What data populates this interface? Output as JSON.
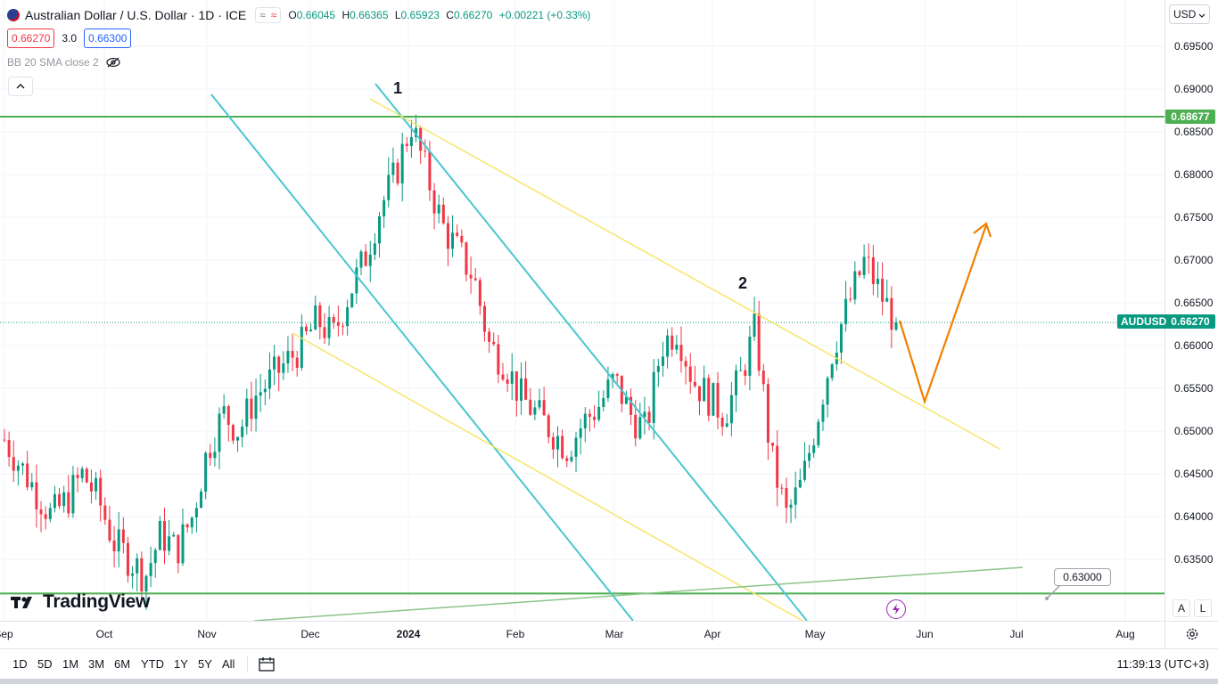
{
  "header": {
    "title": "Australian Dollar / U.S. Dollar · 1D · ICE",
    "pill_left": "≈",
    "pill_right": "≈",
    "ohlc": {
      "open_label": "O",
      "open": "0.66045",
      "high_label": "H",
      "high": "0.66365",
      "low_label": "L",
      "low": "0.65923",
      "close_label": "C",
      "close": "0.66270",
      "change": "+0.00221 (+0.33%)"
    },
    "sell_price": "0.66270",
    "spread": "3.0",
    "buy_price": "0.66300",
    "indicator": "BB 20 SMA close 2"
  },
  "price_axis": {
    "currency": "USD",
    "ticks": [
      "0.69500",
      "0.69000",
      "0.68500",
      "0.68000",
      "0.67500",
      "0.67000",
      "0.66500",
      "0.66000",
      "0.65500",
      "0.65000",
      "0.64500",
      "0.64000",
      "0.63500"
    ],
    "level_tag": "0.68677",
    "symbol_tag": "AUDUSD",
    "last_price_tag": "0.66270"
  },
  "time_axis": {
    "labels": [
      {
        "text": "Sep",
        "bold": false
      },
      {
        "text": "Oct",
        "bold": false
      },
      {
        "text": "Nov",
        "bold": false
      },
      {
        "text": "Dec",
        "bold": false
      },
      {
        "text": "2024",
        "bold": true
      },
      {
        "text": "Feb",
        "bold": false
      },
      {
        "text": "Mar",
        "bold": false
      },
      {
        "text": "Apr",
        "bold": false
      },
      {
        "text": "May",
        "bold": false
      },
      {
        "text": "Jun",
        "bold": false
      },
      {
        "text": "Jul",
        "bold": false
      },
      {
        "text": "Aug",
        "bold": false
      }
    ]
  },
  "annotations": {
    "wave1": "1",
    "wave2": "2",
    "callout": "0.63000"
  },
  "watermark": "TradingView",
  "scale_buttons": {
    "auto": "A",
    "log": "L"
  },
  "bottom_toolbar": {
    "timeframes": [
      "1D",
      "5D",
      "1M",
      "3M",
      "6M",
      "YTD",
      "1Y",
      "5Y",
      "All"
    ],
    "clock": "11:39:13 (UTC+3)"
  },
  "colors": {
    "up": "#089981",
    "down": "#f23645",
    "level_line": "#4caf50",
    "channel_cyan": "#4ac6d0",
    "channel_yellow": "#f5e66b",
    "projection": "#f08000",
    "trendline_green": "#8bc48a"
  },
  "icons": [
    "flag-icon",
    "compare-icon",
    "chevron-up-icon",
    "eye-off-icon",
    "chevron-down-icon",
    "calendar-icon",
    "gear-icon",
    "lightning-icon",
    "tradingview-logo"
  ],
  "chart_data": {
    "type": "candlestick",
    "symbol": "AUDUSD",
    "ylim": [
      0.6305,
      0.698
    ],
    "x_range": [
      "Sep",
      "Aug"
    ],
    "last_close": 0.6627,
    "horizontal_levels": [
      0.68677,
      0.631
    ],
    "swing_points": {
      "wave1_high": 0.6865,
      "wave2_high": 0.6645,
      "may_high": 0.6715,
      "april_low": 0.6365
    },
    "projection": [
      0.6627,
      0.653,
      0.674
    ],
    "series": [
      {
        "name": "Sep",
        "values": [
          0.649,
          0.646,
          0.643,
          0.64,
          0.642,
          0.645
        ]
      },
      {
        "name": "Oct",
        "values": [
          0.642,
          0.637,
          0.635,
          0.633,
          0.638,
          0.636
        ]
      },
      {
        "name": "Nov",
        "values": [
          0.64,
          0.648,
          0.652,
          0.65,
          0.654,
          0.656,
          0.658
        ]
      },
      {
        "name": "Dec",
        "values": [
          0.66,
          0.663,
          0.661,
          0.666,
          0.67,
          0.676,
          0.68,
          0.686
        ]
      },
      {
        "name": "Jan",
        "values": [
          0.68,
          0.674,
          0.671,
          0.668,
          0.66,
          0.658
        ]
      },
      {
        "name": "Feb",
        "values": [
          0.654,
          0.652,
          0.65,
          0.648,
          0.651,
          0.653
        ]
      },
      {
        "name": "Mar",
        "values": [
          0.656,
          0.652,
          0.65,
          0.66,
          0.662,
          0.656
        ]
      },
      {
        "name": "Apr",
        "values": [
          0.654,
          0.652,
          0.656,
          0.662,
          0.647,
          0.64
        ]
      },
      {
        "name": "May",
        "values": [
          0.644,
          0.652,
          0.66,
          0.665,
          0.67,
          0.666,
          0.6627
        ]
      }
    ]
  }
}
